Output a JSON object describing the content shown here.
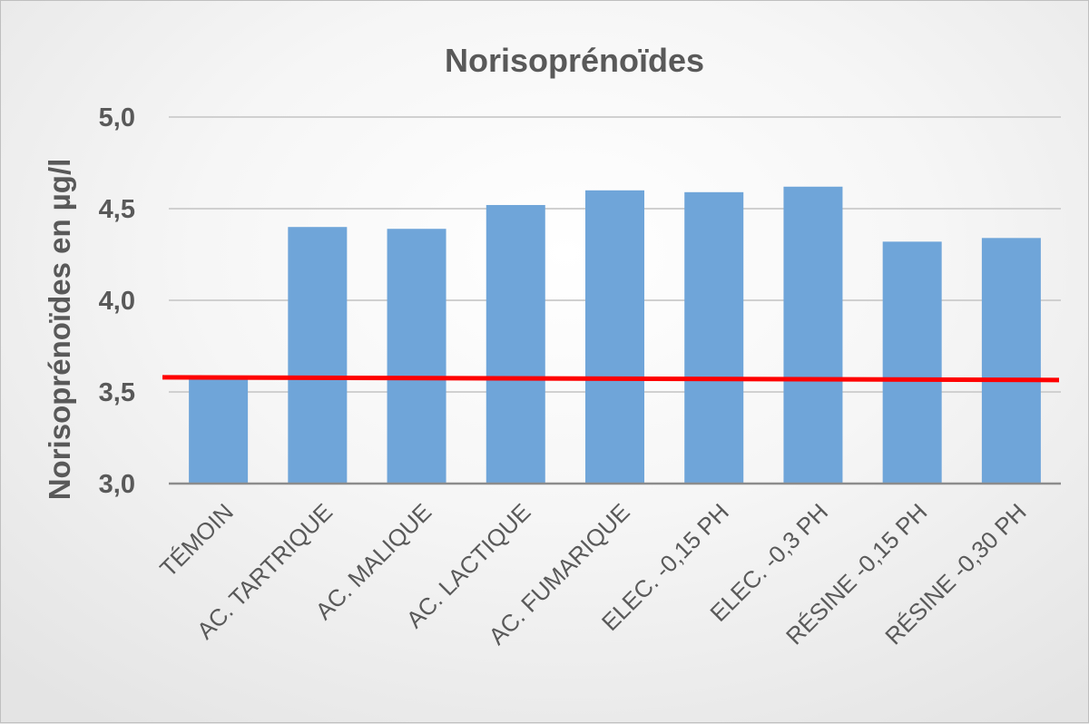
{
  "chart_data": {
    "type": "bar",
    "title": "Norisoprénoïdes",
    "xlabel": "",
    "ylabel": "Norisoprénoïdes en µg/l",
    "categories": [
      "TÉMOIN",
      "AC. TARTRIQUE",
      "AC. MALIQUE",
      "AC. LACTIQUE",
      "AC. FUMARIQUE",
      "ELEC. -0,15 PH",
      "ELEC. -0,3 PH",
      "RÉSINE -0,15 PH",
      "RÉSINE -0,30 PH"
    ],
    "values": [
      3.57,
      4.4,
      4.39,
      4.52,
      4.6,
      4.59,
      4.62,
      4.32,
      4.34
    ],
    "ylim": [
      3.0,
      5.0
    ],
    "yticks": [
      "3,0",
      "3,5",
      "4,0",
      "4,5",
      "5,0"
    ],
    "ytick_values": [
      3.0,
      3.5,
      4.0,
      4.5,
      5.0
    ],
    "reference_line": {
      "value": 3.57,
      "color": "#ff0000"
    },
    "bar_color": "#6fa5d9",
    "grid": true,
    "legend": "none"
  }
}
